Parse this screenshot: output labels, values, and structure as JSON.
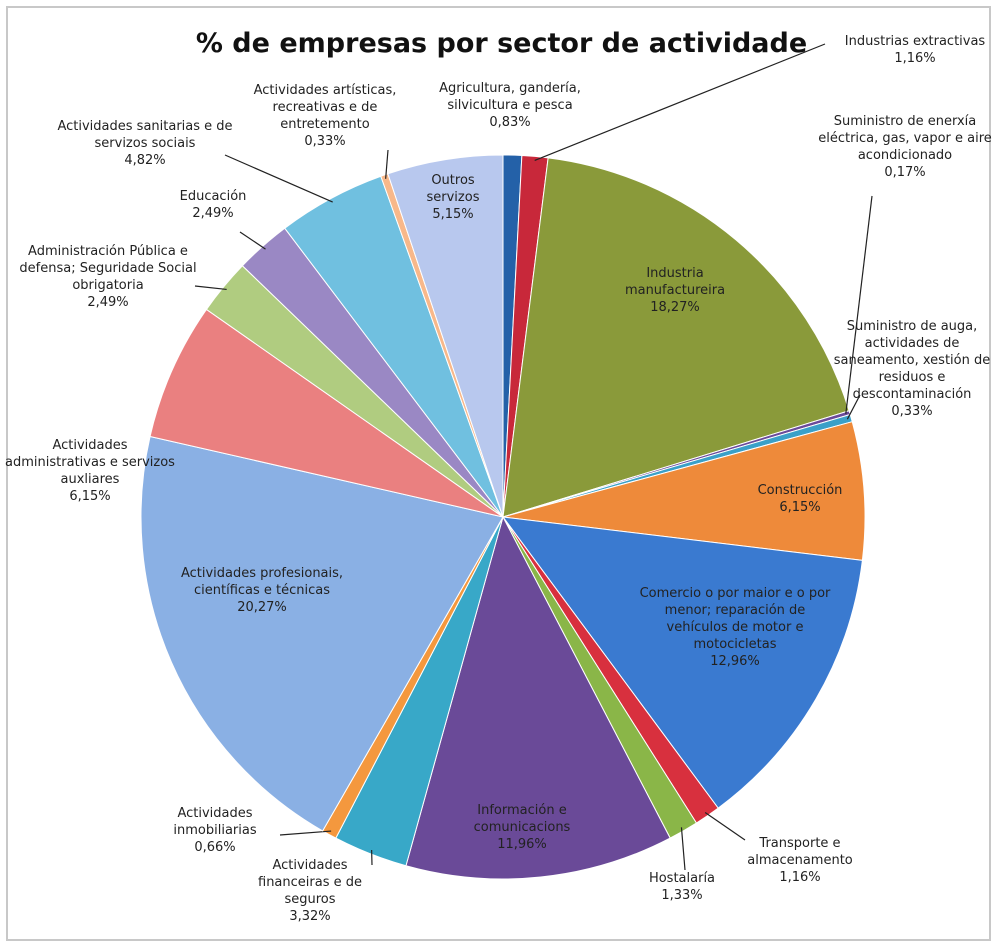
{
  "chart_data": {
    "type": "pie",
    "title": "% de empresas por sector de actividade",
    "categories": [
      "Agricultura, gandería, silvicultura e pesca",
      "Industrias extractivas",
      "Industria manufactureira",
      "Suministro de enerxía eléctrica, gas, vapor e aire acondicionado",
      "Suministro de auga, actividades de saneamento, xestión de residuos e descontaminación",
      "Construcción",
      "Comercio o por maior e o por menor; reparación de vehículos de motor e motocicletas",
      "Transporte e almacenamento",
      "Hostalaría",
      "Información e comunicacions",
      "Actividades financeiras e de seguros",
      "Actividades inmobiliarias",
      "Actividades profesionais, científicas e técnicas",
      "Actividades administrativas e servizos auxliares",
      "Administración Pública e defensa; Seguridade Social obrigatoria",
      "Educación",
      "Actividades sanitarias e de servizos sociais",
      "Actividades artísticas, recreativas e de entretemento",
      "Outros servizos"
    ],
    "values": [
      0.83,
      1.16,
      18.27,
      0.17,
      0.33,
      6.15,
      12.96,
      1.16,
      1.33,
      11.96,
      3.32,
      0.66,
      20.27,
      6.15,
      2.49,
      2.49,
      4.82,
      0.33,
      5.15
    ],
    "value_labels": [
      "0,83%",
      "1,16%",
      "18,27%",
      "0,17%",
      "0,33%",
      "6,15%",
      "12,96%",
      "1,16%",
      "1,33%",
      "11,96%",
      "3,32%",
      "0,66%",
      "20,27%",
      "6,15%",
      "2,49%",
      "2,49%",
      "4,82%",
      "0,33%",
      "5,15%"
    ],
    "colors": [
      "#2461a8",
      "#c8283a",
      "#8a9a3a",
      "#6a4a9a",
      "#3aa0c8",
      "#ee8a3a",
      "#3a7ad0",
      "#d8303e",
      "#8ab648",
      "#6a4a98",
      "#38a8c8",
      "#f4983e",
      "#8ab0e4",
      "#ea8080",
      "#b0cc80",
      "#9a88c4",
      "#70c0e0",
      "#f8b88a",
      "#b8c8ee"
    ]
  }
}
